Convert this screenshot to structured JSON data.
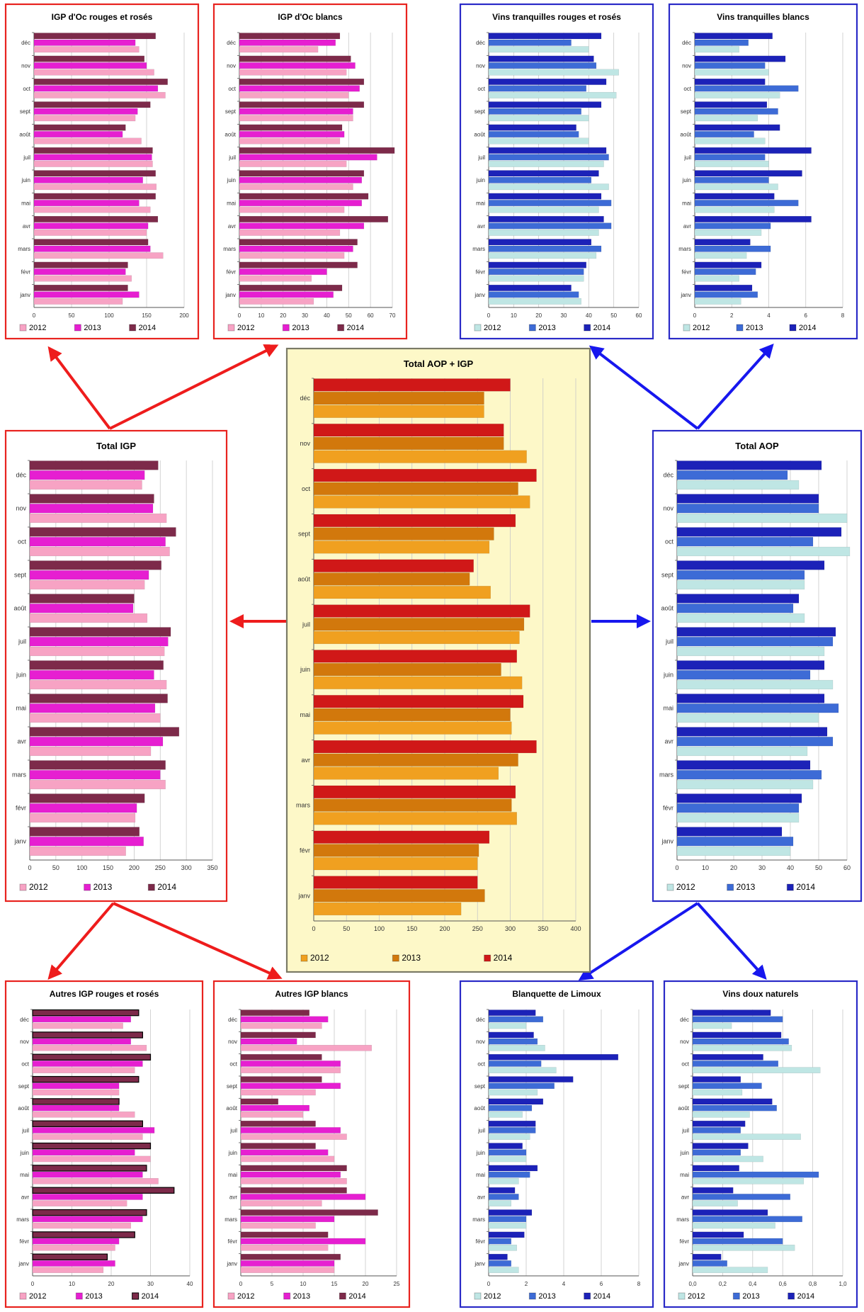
{
  "layout_order": [
    "igp_oc_rouges",
    "igp_oc_blancs",
    "vt_rouges",
    "vt_blancs",
    "total_igp",
    "total",
    "total_aop",
    "autres_rouges",
    "autres_blancs",
    "blanquette",
    "vdn"
  ],
  "months": [
    "déc",
    "nov",
    "oct",
    "sept",
    "août",
    "juil",
    "juin",
    "mai",
    "avr",
    "mars",
    "févr",
    "janv"
  ],
  "legend_years": [
    "2012",
    "2013",
    "2014"
  ],
  "themes": {
    "red": {
      "border": "#e8231f",
      "bg": "#ffffff",
      "colors": [
        "#f7a3c4",
        "#e61fd1",
        "#7d2a4a"
      ]
    },
    "blue": {
      "border": "#2a2ac7",
      "bg": "#ffffff",
      "colors": [
        "#bfe6e4",
        "#3d6bd6",
        "#1c22b8"
      ]
    },
    "center": {
      "border": "#7a7a66",
      "bg": "#fdf8c8",
      "colors": [
        "#f0a020",
        "#d2780c",
        "#d01818"
      ]
    },
    "arrows": {
      "red": "#ee1c1c",
      "blue": "#1717ee"
    }
  },
  "chart_data": [
    {
      "id": "igp_oc_rouges",
      "type": "bar",
      "theme": "red",
      "title": "IGP d'Oc rouges et rosés",
      "categories": [
        "déc",
        "nov",
        "oct",
        "sept",
        "août",
        "juil",
        "juin",
        "mai",
        "avr",
        "mars",
        "févr",
        "janv"
      ],
      "xlim": [
        0,
        200
      ],
      "ticks": [
        0,
        50,
        100,
        150,
        200
      ],
      "series": [
        {
          "name": "2012",
          "values": [
            140,
            160,
            175,
            135,
            143,
            158,
            163,
            155,
            150,
            172,
            130,
            118
          ]
        },
        {
          "name": "2013",
          "values": [
            135,
            150,
            165,
            138,
            118,
            157,
            145,
            140,
            152,
            155,
            122,
            140
          ]
        },
        {
          "name": "2014",
          "values": [
            162,
            147,
            178,
            155,
            122,
            158,
            162,
            162,
            165,
            152,
            125,
            125
          ]
        }
      ]
    },
    {
      "id": "igp_oc_blancs",
      "type": "bar",
      "theme": "red",
      "title": "IGP d'Oc blancs",
      "categories": [
        "déc",
        "nov",
        "oct",
        "sept",
        "août",
        "juil",
        "juin",
        "mai",
        "avr",
        "mars",
        "févr",
        "janv"
      ],
      "xlim": [
        0,
        70
      ],
      "ticks": [
        0,
        10,
        20,
        30,
        40,
        50,
        60,
        70
      ],
      "series": [
        {
          "name": "2012",
          "values": [
            36,
            49,
            50,
            52,
            46,
            49,
            52,
            48,
            46,
            48,
            33,
            34
          ]
        },
        {
          "name": "2013",
          "values": [
            44,
            53,
            55,
            52,
            48,
            63,
            56,
            56,
            57,
            52,
            40,
            43
          ]
        },
        {
          "name": "2014",
          "values": [
            46,
            51,
            57,
            57,
            47,
            71,
            57,
            59,
            68,
            54,
            54,
            47
          ]
        }
      ]
    },
    {
      "id": "vt_rouges",
      "type": "bar",
      "theme": "blue",
      "title": "Vins tranquilles rouges et rosés",
      "categories": [
        "déc",
        "nov",
        "oct",
        "sept",
        "août",
        "juil",
        "juin",
        "mai",
        "avr",
        "mars",
        "févr",
        "janv"
      ],
      "xlim": [
        0,
        60
      ],
      "ticks": [
        0,
        10,
        20,
        30,
        40,
        50,
        60
      ],
      "series": [
        {
          "name": "2012",
          "values": [
            40,
            52,
            51,
            40,
            40,
            46,
            48,
            44,
            44,
            43,
            38,
            37
          ]
        },
        {
          "name": "2013",
          "values": [
            33,
            43,
            39,
            37,
            36,
            48,
            41,
            49,
            49,
            45,
            38,
            36
          ]
        },
        {
          "name": "2014",
          "values": [
            45,
            42,
            47,
            45,
            35,
            47,
            44,
            45,
            46,
            41,
            39,
            33
          ]
        }
      ]
    },
    {
      "id": "vt_blancs",
      "type": "bar",
      "theme": "blue",
      "title": "Vins tranquilles blancs",
      "categories": [
        "déc",
        "nov",
        "oct",
        "sept",
        "août",
        "juil",
        "juin",
        "mai",
        "avr",
        "mars",
        "févr",
        "janv"
      ],
      "xlim": [
        0,
        8
      ],
      "ticks": [
        0,
        2,
        4,
        6,
        8
      ],
      "series": [
        {
          "name": "2012",
          "values": [
            2.4,
            4.0,
            4.6,
            3.4,
            3.8,
            4.0,
            4.5,
            4.3,
            3.6,
            2.8,
            2.4,
            2.5
          ]
        },
        {
          "name": "2013",
          "values": [
            2.9,
            3.8,
            5.6,
            4.5,
            3.2,
            3.8,
            4.0,
            5.6,
            4.1,
            4.1,
            3.3,
            3.4
          ]
        },
        {
          "name": "2014",
          "values": [
            4.2,
            4.9,
            3.8,
            3.9,
            4.6,
            6.3,
            5.8,
            4.3,
            6.3,
            3.0,
            3.6,
            3.1
          ]
        }
      ]
    },
    {
      "id": "total_igp",
      "type": "bar",
      "theme": "red",
      "title": "Total IGP",
      "categories": [
        "déc",
        "nov",
        "oct",
        "sept",
        "août",
        "juil",
        "juin",
        "mai",
        "avr",
        "mars",
        "févr",
        "janv"
      ],
      "xlim": [
        0,
        350
      ],
      "ticks": [
        0,
        50,
        100,
        150,
        200,
        250,
        300,
        350
      ],
      "series": [
        {
          "name": "2012",
          "values": [
            215,
            262,
            268,
            220,
            225,
            258,
            262,
            250,
            232,
            260,
            202,
            184
          ]
        },
        {
          "name": "2013",
          "values": [
            220,
            236,
            260,
            228,
            198,
            265,
            238,
            240,
            255,
            250,
            205,
            218
          ]
        },
        {
          "name": "2014",
          "values": [
            246,
            238,
            280,
            252,
            200,
            270,
            256,
            264,
            286,
            260,
            220,
            210
          ]
        }
      ]
    },
    {
      "id": "total",
      "type": "bar",
      "theme": "center",
      "title": "Total AOP + IGP",
      "categories": [
        "déc",
        "nov",
        "oct",
        "sept",
        "août",
        "juil",
        "juin",
        "mai",
        "avr",
        "mars",
        "févr",
        "janv"
      ],
      "xlim": [
        0,
        400
      ],
      "ticks": [
        0,
        50,
        100,
        150,
        200,
        250,
        300,
        350,
        400
      ],
      "series": [
        {
          "name": "2012",
          "values": [
            260,
            325,
            330,
            268,
            270,
            314,
            318,
            302,
            282,
            310,
            250,
            225
          ]
        },
        {
          "name": "2013",
          "values": [
            260,
            290,
            312,
            275,
            238,
            321,
            286,
            300,
            312,
            302,
            252,
            261
          ]
        },
        {
          "name": "2014",
          "values": [
            300,
            290,
            340,
            308,
            244,
            330,
            310,
            320,
            340,
            308,
            268,
            250
          ]
        }
      ]
    },
    {
      "id": "total_aop",
      "type": "bar",
      "theme": "blue",
      "title": "Total AOP",
      "categories": [
        "déc",
        "nov",
        "oct",
        "sept",
        "août",
        "juil",
        "juin",
        "mai",
        "avr",
        "mars",
        "févr",
        "janv"
      ],
      "xlim": [
        0,
        60
      ],
      "ticks": [
        0,
        10,
        20,
        30,
        40,
        50,
        60
      ],
      "series": [
        {
          "name": "2012",
          "values": [
            43,
            60,
            61,
            45,
            45,
            52,
            55,
            50,
            46,
            48,
            43,
            40
          ]
        },
        {
          "name": "2013",
          "values": [
            39,
            50,
            48,
            45,
            41,
            55,
            47,
            57,
            55,
            51,
            43,
            41
          ]
        },
        {
          "name": "2014",
          "values": [
            51,
            50,
            58,
            52,
            43,
            56,
            52,
            52,
            53,
            47,
            44,
            37
          ]
        }
      ]
    },
    {
      "id": "autres_rouges",
      "type": "bar",
      "theme": "red",
      "title": "Autres IGP rouges et rosés",
      "outlined": true,
      "categories": [
        "déc",
        "nov",
        "oct",
        "sept",
        "août",
        "juil",
        "juin",
        "mai",
        "avr",
        "mars",
        "févr",
        "janv"
      ],
      "xlim": [
        0,
        40
      ],
      "ticks": [
        0,
        10,
        20,
        30,
        40
      ],
      "series": [
        {
          "name": "2012",
          "values": [
            23,
            29,
            26,
            22,
            26,
            28,
            30,
            32,
            24,
            25,
            21,
            18
          ]
        },
        {
          "name": "2013",
          "values": [
            25,
            25,
            28,
            22,
            22,
            31,
            26,
            28,
            28,
            28,
            22,
            21
          ]
        },
        {
          "name": "2014",
          "values": [
            27,
            28,
            30,
            27,
            22,
            28,
            30,
            29,
            36,
            29,
            26,
            19
          ]
        }
      ]
    },
    {
      "id": "autres_blancs",
      "type": "bar",
      "theme": "red",
      "title": "Autres IGP blancs",
      "categories": [
        "déc",
        "nov",
        "oct",
        "sept",
        "août",
        "juil",
        "juin",
        "mai",
        "avr",
        "mars",
        "févr",
        "janv"
      ],
      "xlim": [
        0,
        25
      ],
      "ticks": [
        0,
        5,
        10,
        15,
        20,
        25
      ],
      "series": [
        {
          "name": "2012",
          "values": [
            13,
            21,
            16,
            12,
            10,
            17,
            15,
            17,
            13,
            12,
            14,
            15
          ]
        },
        {
          "name": "2013",
          "values": [
            14,
            9,
            16,
            16,
            11,
            16,
            14,
            16,
            20,
            15,
            20,
            15
          ]
        },
        {
          "name": "2014",
          "values": [
            11,
            12,
            13,
            13,
            6,
            12,
            12,
            17,
            17,
            22,
            14,
            16
          ]
        }
      ]
    },
    {
      "id": "blanquette",
      "type": "bar",
      "theme": "blue",
      "title": "Blanquette de Limoux",
      "categories": [
        "déc",
        "nov",
        "oct",
        "sept",
        "août",
        "juil",
        "juin",
        "mai",
        "avr",
        "mars",
        "févr",
        "janv"
      ],
      "xlim": [
        0,
        8
      ],
      "ticks": [
        0,
        2,
        4,
        6,
        8
      ],
      "series": [
        {
          "name": "2012",
          "values": [
            2.0,
            3.0,
            3.6,
            2.6,
            1.8,
            2.2,
            2.0,
            1.6,
            1.2,
            2.0,
            1.5,
            1.6
          ]
        },
        {
          "name": "2013",
          "values": [
            2.9,
            2.6,
            2.8,
            3.5,
            2.3,
            2.5,
            2.0,
            2.2,
            1.6,
            2.0,
            1.2,
            1.2
          ]
        },
        {
          "name": "2014",
          "values": [
            2.5,
            2.4,
            6.9,
            4.5,
            2.9,
            2.5,
            1.8,
            2.6,
            1.4,
            2.3,
            1.9,
            1.0
          ]
        }
      ]
    },
    {
      "id": "vdn",
      "type": "bar",
      "theme": "blue",
      "title": "Vins doux naturels",
      "categories": [
        "déc",
        "nov",
        "oct",
        "sept",
        "août",
        "juil",
        "juin",
        "mai",
        "avr",
        "mars",
        "févr",
        "janv"
      ],
      "xlim": [
        0,
        1.0
      ],
      "ticks": [
        0,
        0.2,
        0.4,
        0.6,
        0.8,
        1.0
      ],
      "tick_labels": [
        "0,0",
        "0,2",
        "0,4",
        "0,6",
        "0,8",
        "1,0"
      ],
      "series": [
        {
          "name": "2012",
          "values": [
            0.26,
            0.66,
            0.85,
            0.33,
            0.38,
            0.72,
            0.47,
            0.74,
            0.3,
            0.55,
            0.68,
            0.5
          ]
        },
        {
          "name": "2013",
          "values": [
            0.6,
            0.64,
            0.57,
            0.46,
            0.56,
            0.32,
            0.32,
            0.84,
            0.65,
            0.73,
            0.6,
            0.23
          ]
        },
        {
          "name": "2014",
          "values": [
            0.52,
            0.59,
            0.47,
            0.32,
            0.53,
            0.35,
            0.37,
            0.31,
            0.27,
            0.5,
            0.34,
            0.19
          ]
        }
      ]
    }
  ]
}
